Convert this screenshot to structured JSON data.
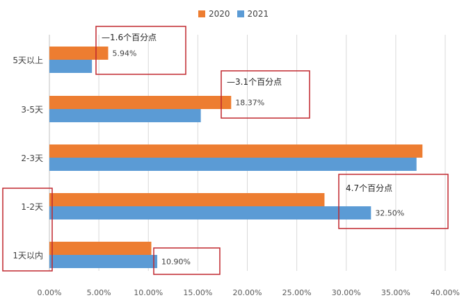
{
  "chart_data": {
    "type": "bar",
    "orientation": "horizontal",
    "categories": [
      "5天以上",
      "3-5天",
      "2-3天",
      "1-2天",
      "1天以内"
    ],
    "series": [
      {
        "name": "2020",
        "color": "#ED7D31",
        "values": [
          5.94,
          18.37,
          37.7,
          27.8,
          10.3
        ]
      },
      {
        "name": "2021",
        "color": "#5B9BD5",
        "values": [
          4.3,
          15.3,
          37.1,
          32.5,
          10.9
        ]
      }
    ],
    "xlim": [
      0,
      40
    ],
    "xticks": [
      "0.00%",
      "5.00%",
      "10.00%",
      "15.00%",
      "20.00%",
      "25.00%",
      "30.00%",
      "35.00%",
      "40.00%"
    ],
    "grid": true,
    "legend_position": "top-center",
    "data_labels": [
      {
        "category": "5天以上",
        "series": "2020",
        "text": "5.94%"
      },
      {
        "category": "3-5天",
        "series": "2020",
        "text": "18.37%"
      },
      {
        "category": "1-2天",
        "series": "2021",
        "text": "32.50%"
      },
      {
        "category": "1天以内",
        "series": "2021",
        "text": "10.90%"
      }
    ],
    "annotations": [
      {
        "text": "—1.6个百分点",
        "category": "5天以上"
      },
      {
        "text": "—3.1个百分点",
        "category": "3-5天"
      },
      {
        "text": "4.7个百分点",
        "category": "1-2天"
      }
    ],
    "highlight_color": "#C0272D"
  }
}
